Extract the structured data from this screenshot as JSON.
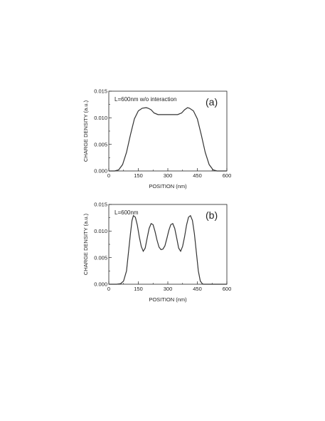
{
  "chart_data": [
    {
      "type": "line",
      "panel_label": "(a)",
      "annotation": "L=600nm w/o interaction",
      "xlabel": "POSITION (nm)",
      "ylabel": "CHARGE DENSITY (a.u.)",
      "xlim": [
        0,
        600
      ],
      "ylim": [
        0.0,
        0.015
      ],
      "xticks": [
        "0",
        "150",
        "300",
        "450",
        "600"
      ],
      "xtick_values": [
        0,
        150,
        300,
        450,
        600
      ],
      "yticks": [
        "0.000",
        "0.005",
        "0.010",
        "0.015"
      ],
      "ytick_values": [
        0.0,
        0.005,
        0.01,
        0.015
      ],
      "grid": false,
      "x": [
        0,
        30,
        50,
        70,
        90,
        110,
        130,
        150,
        170,
        190,
        200,
        215,
        230,
        250,
        270,
        300,
        330,
        350,
        370,
        385,
        400,
        410,
        430,
        450,
        470,
        490,
        510,
        530,
        550,
        570,
        600
      ],
      "y": [
        0.0,
        0.0,
        0.0002,
        0.0012,
        0.0035,
        0.0068,
        0.0098,
        0.0113,
        0.0118,
        0.0119,
        0.0118,
        0.0115,
        0.0109,
        0.0106,
        0.0106,
        0.0106,
        0.0106,
        0.0106,
        0.0109,
        0.0115,
        0.0119,
        0.0118,
        0.0113,
        0.0098,
        0.0068,
        0.0035,
        0.0012,
        0.0002,
        0.0,
        0.0,
        0.0
      ]
    },
    {
      "type": "line",
      "panel_label": "(b)",
      "annotation": "L=600nm",
      "xlabel": "POSITION (nm)",
      "ylabel": "CHARGE DENSITY (a.u.)",
      "xlim": [
        0,
        600
      ],
      "ylim": [
        0.0,
        0.015
      ],
      "xticks": [
        "0",
        "150",
        "300",
        "450",
        "600"
      ],
      "xtick_values": [
        0,
        150,
        300,
        450,
        600
      ],
      "yticks": [
        "0.000",
        "0.005",
        "0.010",
        "0.015"
      ],
      "ytick_values": [
        0.0,
        0.005,
        0.01,
        0.015
      ],
      "grid": false,
      "x": [
        0,
        40,
        60,
        75,
        90,
        100,
        110,
        118,
        125,
        135,
        145,
        155,
        165,
        175,
        185,
        195,
        205,
        215,
        225,
        235,
        245,
        255,
        265,
        275,
        285,
        295,
        305,
        315,
        325,
        335,
        345,
        355,
        365,
        375,
        385,
        395,
        405,
        415,
        425,
        435,
        445,
        455,
        465,
        475,
        482,
        490,
        500,
        510,
        525,
        540,
        560,
        600
      ],
      "y": [
        0.0,
        0.0,
        0.0001,
        0.0006,
        0.0025,
        0.006,
        0.0095,
        0.012,
        0.0129,
        0.0126,
        0.0111,
        0.0089,
        0.0071,
        0.0062,
        0.0068,
        0.0087,
        0.0105,
        0.0114,
        0.0112,
        0.0099,
        0.0083,
        0.007,
        0.0065,
        0.0066,
        0.0072,
        0.0086,
        0.0101,
        0.0112,
        0.0114,
        0.0105,
        0.0087,
        0.0068,
        0.0062,
        0.0071,
        0.0089,
        0.0111,
        0.0126,
        0.0129,
        0.012,
        0.0095,
        0.006,
        0.0025,
        0.0006,
        0.0001,
        0.0,
        0.0,
        0.0,
        0.0,
        0.0,
        0.0,
        0.0,
        0.0
      ]
    }
  ]
}
